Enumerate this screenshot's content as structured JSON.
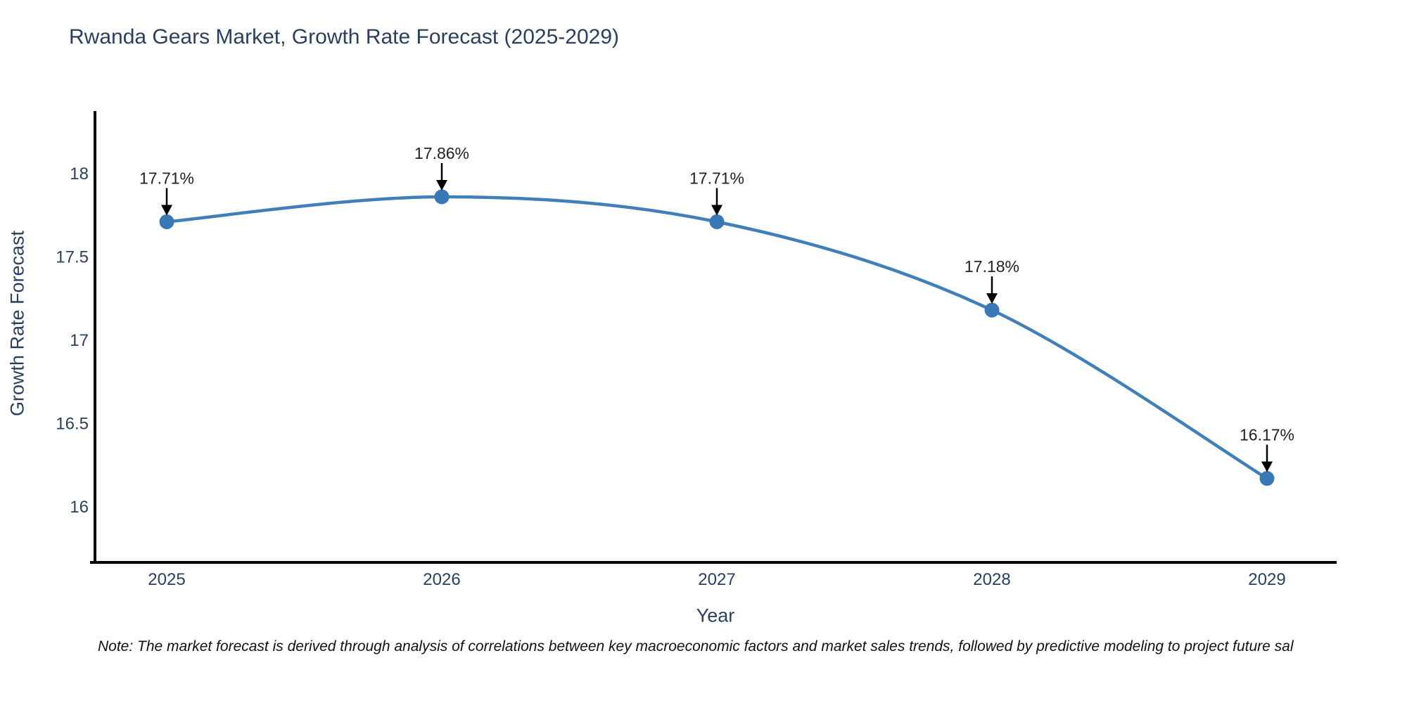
{
  "title": "Rwanda Gears Market, Growth Rate Forecast (2025-2029)",
  "note": "Note: The market forecast is derived through analysis of correlations between key macroeconomic factors and market sales trends, followed by predictive modeling to project future sal",
  "chart_data": {
    "type": "line",
    "title": "Rwanda Gears Market, Growth Rate Forecast (2025-2029)",
    "xlabel": "Year",
    "ylabel": "Growth Rate Forecast",
    "categories": [
      "2025",
      "2026",
      "2027",
      "2028",
      "2029"
    ],
    "values": [
      17.71,
      17.86,
      17.71,
      17.18,
      16.17
    ],
    "point_labels": [
      "17.71%",
      "17.86%",
      "17.71%",
      "17.18%",
      "16.17%"
    ],
    "yticks": [
      18,
      17.5,
      17,
      16.5,
      16
    ],
    "ylim": [
      15.666,
      18.366
    ],
    "line_shape": "spline",
    "grid": false,
    "legend": "none",
    "annotations_style": "label-with-down-arrow",
    "colors": {
      "line": "#417fb9",
      "marker": "#3878b4",
      "axis": "#000000",
      "tick_text": "#2a3f5f",
      "annotation_text": "#222222",
      "arrow": "#000000",
      "background": "#ffffff"
    }
  }
}
